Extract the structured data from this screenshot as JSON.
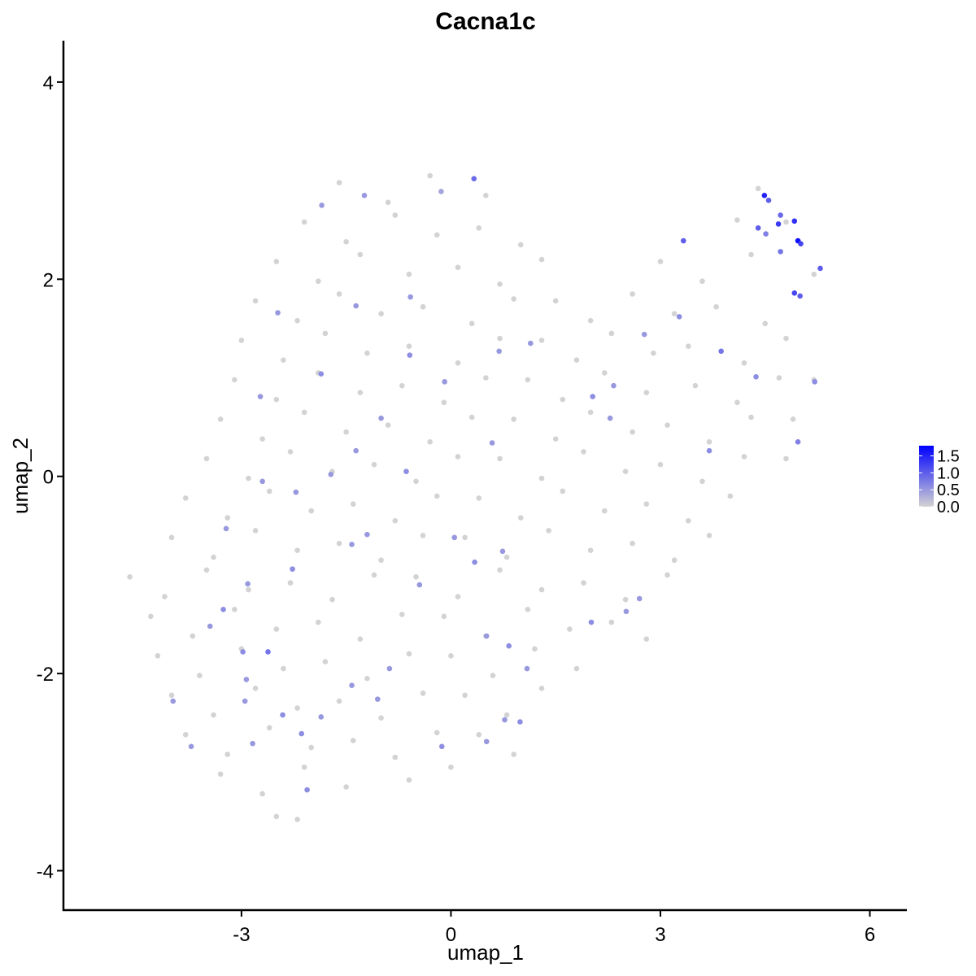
{
  "chart_data": {
    "type": "scatter",
    "title": "Cacna1c",
    "x_label": "umap_1",
    "y_label": "umap_2",
    "xlim": [
      -5.55,
      6.53
    ],
    "ylim": [
      -4.4,
      4.42
    ],
    "xticks": [
      -3,
      0,
      3,
      6
    ],
    "yticks": [
      -4,
      -2,
      0,
      2,
      4
    ],
    "color_low": "#d3d3d3",
    "color_high": "#0000ff",
    "color_limits": [
      0,
      1.8
    ],
    "color_ticks": [
      {
        "value": 0,
        "label": "0.0"
      },
      {
        "value": 0.5,
        "label": "0.5"
      },
      {
        "value": 1,
        "label": "1.0"
      },
      {
        "value": 1.5,
        "label": "1.5"
      }
    ],
    "x": [
      -1.6,
      -0.9,
      -0.3,
      0.5,
      4.4,
      -2.1,
      -1.5,
      -0.8,
      -0.2,
      0.4,
      1.0,
      4.1,
      4.8,
      -2.5,
      -1.9,
      -1.3,
      -0.6,
      0.1,
      0.7,
      1.3,
      3.0,
      3.6,
      4.3,
      5.2,
      -2.8,
      -2.2,
      -1.6,
      -1.0,
      -0.4,
      0.3,
      0.9,
      1.5,
      2.0,
      2.6,
      3.2,
      3.8,
      4.5,
      -3.0,
      -2.4,
      -1.8,
      -1.2,
      -0.6,
      0.1,
      0.7,
      1.3,
      1.8,
      2.3,
      2.9,
      3.4,
      4.2,
      4.8,
      -3.1,
      -2.5,
      -1.9,
      -1.3,
      -0.7,
      -0.1,
      0.5,
      1.1,
      1.6,
      2.2,
      2.8,
      3.5,
      4.1,
      4.7,
      5.2,
      -3.3,
      -2.7,
      -2.1,
      -1.5,
      -0.9,
      -0.3,
      0.3,
      0.9,
      1.5,
      2.0,
      2.6,
      3.1,
      3.7,
      4.3,
      4.9,
      -3.5,
      -2.9,
      -2.3,
      -1.7,
      -1.1,
      -0.5,
      0.1,
      0.7,
      1.3,
      1.9,
      2.5,
      3.0,
      3.6,
      4.2,
      4.8,
      -3.8,
      -3.2,
      -2.6,
      -2.0,
      -1.4,
      -0.8,
      -0.2,
      0.4,
      1.0,
      1.6,
      2.2,
      2.8,
      3.4,
      4.0,
      -4.0,
      -3.4,
      -2.8,
      -2.2,
      -1.6,
      -1.0,
      -0.4,
      0.2,
      0.8,
      1.4,
      2.0,
      2.6,
      3.2,
      3.7,
      -4.6,
      -4.1,
      -3.5,
      -2.9,
      -2.3,
      -1.7,
      -1.1,
      -0.5,
      0.1,
      0.7,
      1.3,
      1.9,
      2.5,
      3.1,
      -4.3,
      -3.7,
      -3.1,
      -2.5,
      -1.9,
      -1.3,
      -0.7,
      -0.1,
      0.5,
      1.1,
      1.7,
      2.3,
      2.8,
      -4.2,
      -3.6,
      -3.0,
      -2.4,
      -1.8,
      -1.2,
      -0.6,
      0.0,
      0.6,
      1.2,
      1.8,
      -4.0,
      -3.4,
      -2.8,
      -2.2,
      -1.6,
      -1.0,
      -0.4,
      0.2,
      0.8,
      1.3,
      -3.8,
      -3.2,
      -2.6,
      -2.0,
      -1.4,
      -0.8,
      -0.2,
      0.4,
      0.9,
      -3.3,
      -2.7,
      -2.1,
      -1.5,
      -0.6,
      0.0,
      -2.5,
      -2.2,
      0.33,
      4.49,
      4.97,
      4.92,
      4.69,
      4.55,
      3.33,
      5.01,
      5.29,
      4.92,
      5.0,
      4.4,
      4.72,
      4.72,
      4.51,
      5.21,
      4.97,
      3.87,
      4.37,
      2.03,
      2.33,
      0.69,
      -0.59,
      -0.58,
      -0.09,
      -1.86,
      -2.48,
      -2.73,
      -1.36,
      -0.64,
      0.59,
      0.05,
      0.34,
      0.74,
      -0.45,
      -1.2,
      -1.42,
      -2.7,
      -2.27,
      -3.22,
      -2.91,
      -3.26,
      -3.45,
      -2.98,
      -2.62,
      -2.93,
      -2.95,
      -2.41,
      -2.14,
      -2.06,
      -3.98,
      -3.72,
      -2.84,
      -1.86,
      -1.42,
      -1.05,
      -0.88,
      -0.13,
      0.51,
      0.77,
      0.99,
      0.83,
      0.51,
      2.01,
      2.51,
      2.7,
      1.09,
      3.27,
      2.77,
      3.7,
      -1.72,
      -2.22,
      -1.0,
      -1.85,
      -1.24,
      -0.14,
      -1.36,
      1.14,
      2.28
    ],
    "values": [
      2.98,
      2.78,
      3.05,
      2.85,
      2.92,
      2.58,
      2.38,
      2.65,
      2.45,
      2.52,
      2.35,
      2.6,
      2.58,
      2.18,
      1.98,
      2.25,
      2.05,
      2.12,
      1.95,
      2.2,
      2.18,
      1.98,
      2.25,
      2.05,
      1.78,
      1.58,
      1.85,
      1.65,
      1.72,
      1.55,
      1.8,
      1.78,
      1.58,
      1.85,
      1.65,
      1.72,
      1.55,
      1.38,
      1.18,
      1.45,
      1.25,
      1.32,
      1.15,
      1.4,
      1.38,
      1.18,
      1.45,
      1.25,
      1.32,
      1.15,
      1.4,
      0.98,
      0.78,
      1.05,
      0.85,
      0.92,
      0.75,
      1.0,
      0.98,
      0.78,
      1.05,
      0.85,
      0.92,
      0.75,
      1.0,
      0.98,
      0.58,
      0.38,
      0.65,
      0.45,
      0.52,
      0.35,
      0.6,
      0.58,
      0.38,
      0.65,
      0.45,
      0.52,
      0.35,
      0.6,
      0.58,
      0.18,
      -0.02,
      0.25,
      0.05,
      0.12,
      -0.05,
      0.2,
      0.18,
      -0.02,
      0.25,
      0.05,
      0.12,
      -0.05,
      0.2,
      0.18,
      -0.22,
      -0.42,
      -0.15,
      -0.35,
      -0.28,
      -0.45,
      -0.2,
      -0.22,
      -0.42,
      -0.15,
      -0.35,
      -0.28,
      -0.45,
      -0.2,
      -0.62,
      -0.82,
      -0.55,
      -0.75,
      -0.68,
      -0.85,
      -0.6,
      -0.62,
      -0.82,
      -0.55,
      -0.75,
      -0.68,
      -0.85,
      -0.6,
      -1.02,
      -1.22,
      -0.95,
      -1.15,
      -1.08,
      -1.25,
      -1.0,
      -1.02,
      -1.22,
      -0.95,
      -1.15,
      -1.08,
      -1.25,
      -1.0,
      -1.42,
      -1.62,
      -1.35,
      -1.55,
      -1.48,
      -1.65,
      -1.4,
      -1.42,
      -1.62,
      -1.35,
      -1.55,
      -1.48,
      -1.65,
      -1.82,
      -2.02,
      -1.75,
      -1.95,
      -1.88,
      -2.05,
      -1.8,
      -1.82,
      -2.02,
      -1.75,
      -1.95,
      -2.22,
      -2.42,
      -2.15,
      -2.35,
      -2.28,
      -2.45,
      -2.2,
      -2.22,
      -2.42,
      -2.15,
      -2.62,
      -2.82,
      -2.55,
      -2.75,
      -2.68,
      -2.85,
      -2.6,
      -2.62,
      -2.82,
      -3.02,
      -3.22,
      -2.95,
      -3.15,
      -3.08,
      -2.95,
      -3.45,
      -3.48,
      3.02,
      2.85,
      2.39,
      2.59,
      2.56,
      2.8,
      2.39,
      2.36,
      2.11,
      1.86,
      1.83,
      2.52,
      2.65,
      2.28,
      2.46,
      0.96,
      0.35,
      1.27,
      1.01,
      0.81,
      0.92,
      1.27,
      1.23,
      1.82,
      0.96,
      1.04,
      1.66,
      0.81,
      0.26,
      0.05,
      0.34,
      -0.62,
      -0.87,
      -0.76,
      -1.1,
      -0.59,
      -0.69,
      -0.05,
      -0.94,
      -0.53,
      -1.09,
      -1.35,
      -1.52,
      -1.78,
      -1.78,
      -2.06,
      -2.28,
      -2.42,
      -2.61,
      -3.18,
      -2.28,
      -2.74,
      -2.71,
      -2.44,
      -2.12,
      -2.26,
      -1.95,
      -2.74,
      -2.69,
      -2.47,
      -2.49,
      -1.72,
      -1.62,
      -1.48,
      -1.37,
      -1.24,
      -1.95,
      1.62,
      1.44,
      0.26,
      0.02,
      -0.16,
      0.59,
      2.75,
      2.85,
      2.89,
      1.73,
      1.35,
      0.59
    ],
    "expression": [
      0,
      0,
      0,
      0,
      0,
      0,
      0,
      0,
      0,
      0,
      0,
      0,
      0,
      0,
      0,
      0,
      0,
      0,
      0,
      0,
      0,
      0,
      0,
      0,
      0,
      0,
      0,
      0,
      0,
      0,
      0,
      0,
      0,
      0,
      0,
      0,
      0,
      0,
      0,
      0,
      0,
      0,
      0,
      0,
      0,
      0,
      0,
      0,
      0,
      0,
      0,
      0,
      0,
      0,
      0,
      0,
      0,
      0,
      0,
      0,
      0,
      0,
      0,
      0,
      0,
      0,
      0,
      0,
      0,
      0,
      0,
      0,
      0,
      0,
      0,
      0,
      0,
      0,
      0,
      0,
      0,
      0,
      0,
      0,
      0,
      0,
      0,
      0,
      0,
      0,
      0,
      0,
      0,
      0,
      0,
      0,
      0,
      0,
      0,
      0,
      0,
      0,
      0,
      0,
      0,
      0,
      0,
      0,
      0,
      0,
      0,
      0,
      0,
      0,
      0,
      0,
      0,
      0,
      0,
      0,
      0,
      0,
      0,
      0,
      0,
      0,
      0,
      0,
      0,
      0,
      0,
      0,
      0,
      0,
      0,
      0,
      0,
      0,
      0,
      0,
      0,
      0,
      0,
      0,
      0,
      0,
      0,
      0,
      0,
      0,
      0,
      0,
      0,
      0,
      0,
      0,
      0,
      0,
      0,
      0,
      0,
      0,
      0,
      0,
      0,
      0,
      0,
      0,
      0,
      0,
      0,
      0,
      0,
      0,
      0,
      0,
      0,
      0,
      0,
      0,
      0,
      0,
      0,
      0,
      0,
      0,
      0,
      0,
      0,
      0.9,
      1.5,
      1.7,
      1.4,
      1.3,
      1.0,
      1.0,
      1.2,
      1.0,
      1.2,
      1.0,
      1.0,
      0.9,
      0.8,
      0.7,
      0.6,
      0.7,
      0.8,
      0.6,
      0.6,
      0.5,
      0.5,
      0.6,
      0.5,
      0.5,
      0.6,
      0.5,
      0.5,
      0.5,
      0.6,
      0.5,
      0.5,
      0.6,
      0.5,
      0.5,
      0.5,
      0.5,
      0.5,
      0.6,
      0.5,
      0.5,
      0.6,
      0.5,
      0.6,
      0.8,
      0.5,
      0.5,
      0.6,
      0.6,
      0.6,
      0.5,
      0.5,
      0.5,
      0.5,
      0.5,
      0.5,
      0.5,
      0.6,
      0.5,
      0.5,
      0.6,
      0.6,
      0.5,
      0.6,
      0.5,
      0.5,
      0.5,
      0.6,
      0.5,
      0.6,
      0.5,
      0.5,
      0.5,
      0.5,
      0.5,
      0.4,
      0.5,
      0.5,
      0.5
    ]
  }
}
